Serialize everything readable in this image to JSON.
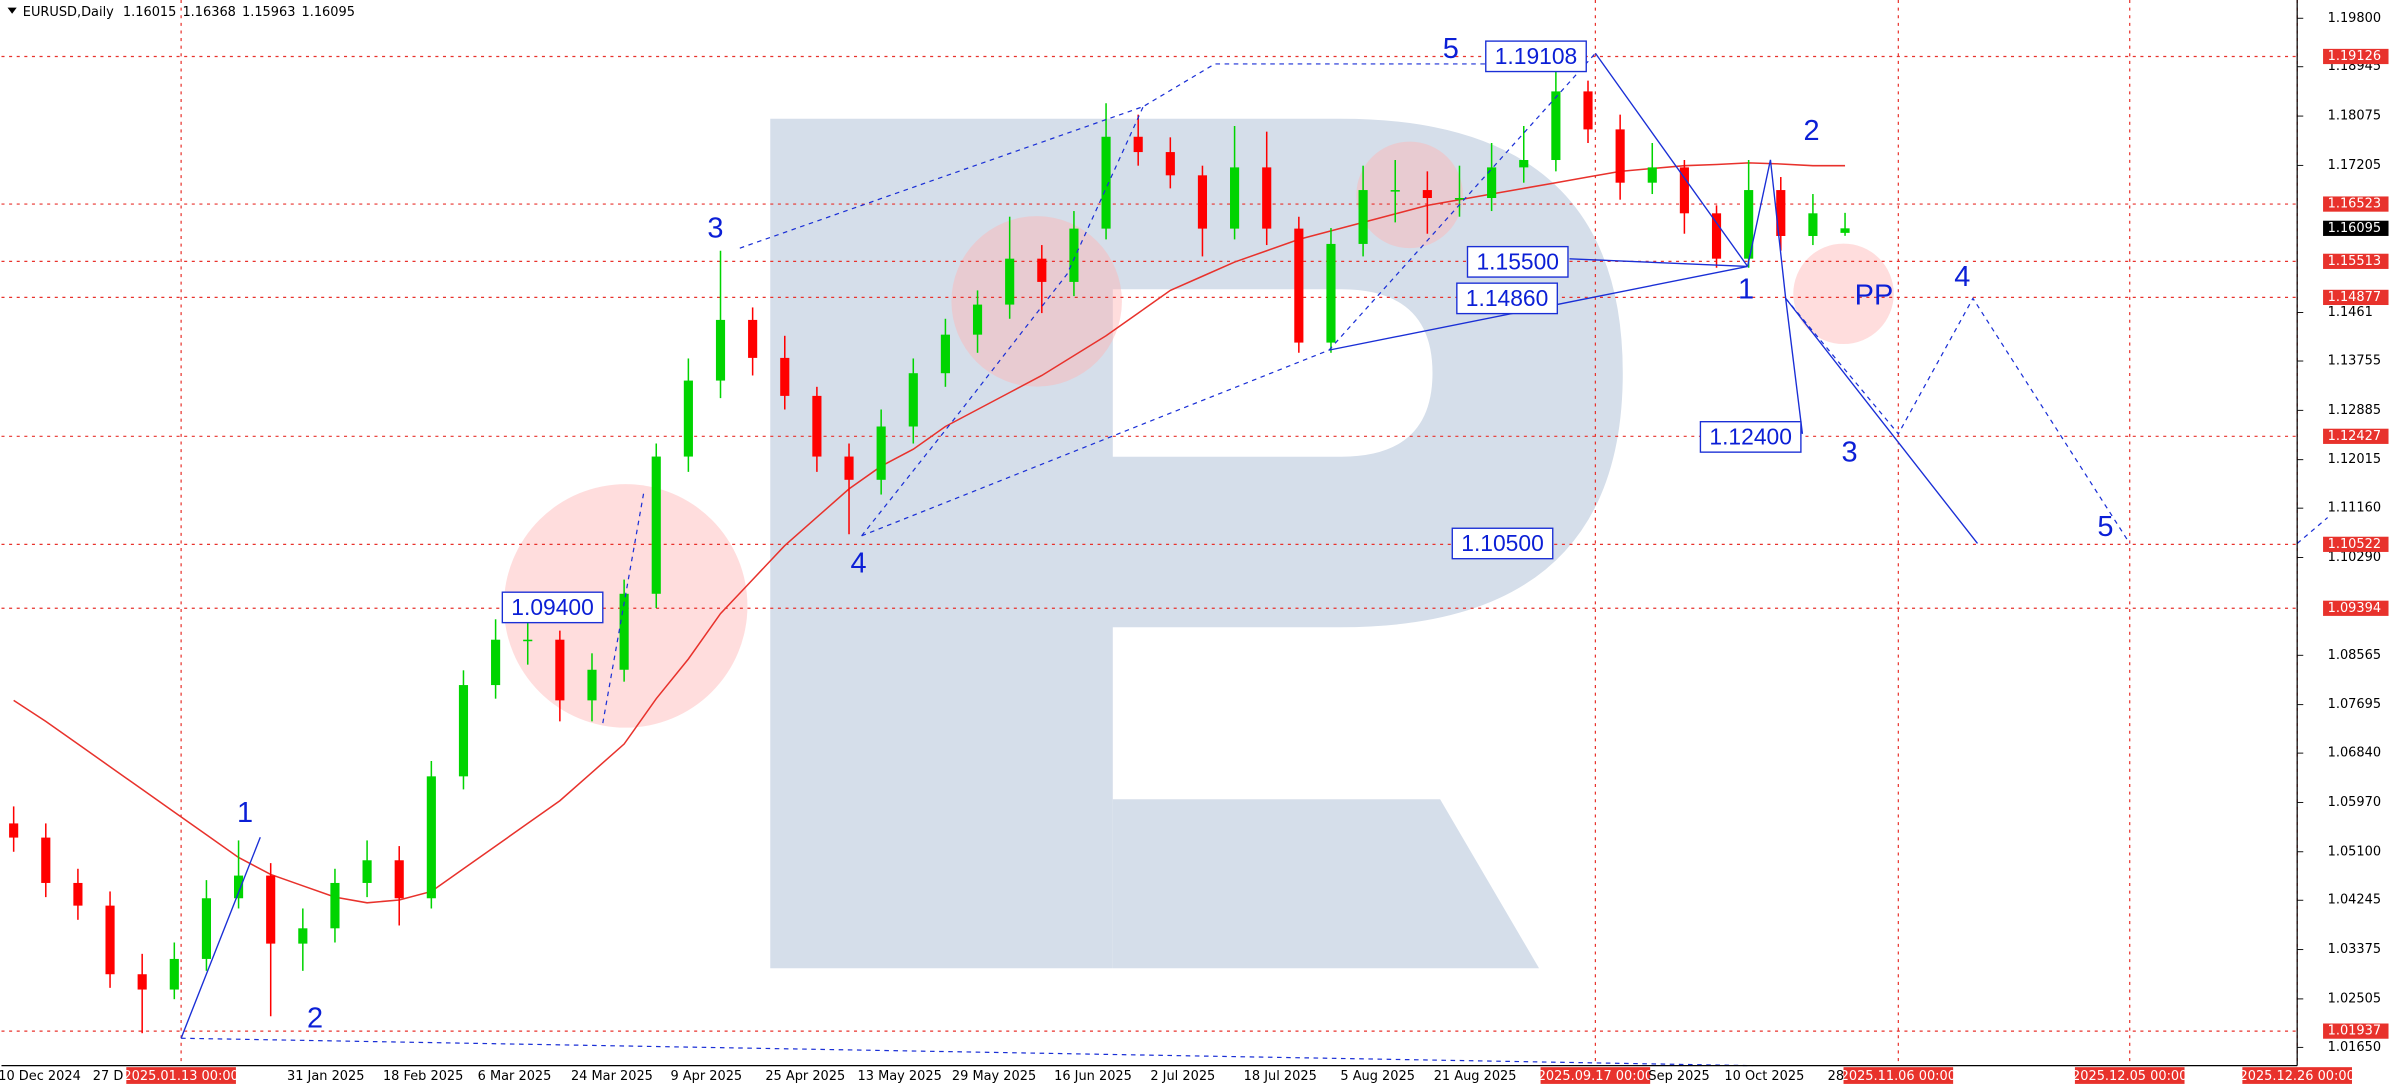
{
  "header": {
    "symbol": "EURUSD,Daily",
    "ohlc": [
      1.16015,
      1.16368,
      1.15963,
      1.16095
    ]
  },
  "chart_data": {
    "type": "candlestick",
    "ylim": [
      1.01328,
      1.20122
    ],
    "yticks": [
      {
        "value": 1.198,
        "label": "1.19800"
      },
      1.18945,
      1.18075,
      1.17205,
      1.1461,
      1.13755,
      1.12885,
      1.12015,
      {
        "value": 1.1116,
        "label": "1.11160"
      },
      {
        "value": 1.1029,
        "label": "1.10290"
      },
      1.08565,
      1.07695,
      {
        "value": 1.0684,
        "label": "1.06840"
      },
      {
        "value": 1.0597,
        "label": "1.05970"
      },
      {
        "value": 1.051,
        "label": "1.05100"
      },
      1.04245,
      1.03375,
      1.02505,
      {
        "value": 1.0165,
        "label": "1.01650"
      }
    ],
    "levels": [
      1.19126,
      1.16523,
      1.15513,
      1.14877,
      1.12427,
      1.10522,
      1.09394,
      1.01937
    ],
    "current_price": 1.16095,
    "candles": [
      [
        1.056,
        1.059,
        1.051,
        1.0535
      ],
      [
        1.0535,
        1.056,
        1.043,
        1.0455
      ],
      [
        1.0455,
        1.048,
        1.039,
        1.0415
      ],
      [
        1.0415,
        1.044,
        1.027,
        1.0294
      ],
      [
        1.0294,
        1.033,
        1.019,
        1.0267
      ],
      [
        1.0267,
        1.035,
        1.025,
        1.0321
      ],
      [
        1.0321,
        1.046,
        1.03,
        1.0428
      ],
      [
        1.0428,
        1.053,
        1.041,
        1.0468
      ],
      [
        1.0468,
        1.049,
        1.022,
        1.0348
      ],
      [
        1.0348,
        1.041,
        1.03,
        1.0375
      ],
      [
        1.0375,
        1.048,
        1.035,
        1.0455
      ],
      [
        1.0455,
        1.053,
        1.043,
        1.0495
      ],
      [
        1.0495,
        1.052,
        1.038,
        1.0428
      ],
      [
        1.0428,
        1.067,
        1.041,
        1.0643
      ],
      [
        1.0643,
        1.083,
        1.062,
        1.0804
      ],
      [
        1.0804,
        1.092,
        1.078,
        1.0884
      ],
      [
        1.0884,
        1.094,
        1.084,
        1.0884
      ],
      [
        1.0884,
        1.09,
        1.074,
        1.0777
      ],
      [
        1.0777,
        1.086,
        1.074,
        1.0831
      ],
      [
        1.0831,
        1.099,
        1.081,
        1.0965
      ],
      [
        1.0965,
        1.123,
        1.094,
        1.1207
      ],
      [
        1.1207,
        1.138,
        1.118,
        1.1341
      ],
      [
        1.1341,
        1.157,
        1.131,
        1.1448
      ],
      [
        1.1448,
        1.147,
        1.135,
        1.1381
      ],
      [
        1.1381,
        1.142,
        1.129,
        1.1314
      ],
      [
        1.1314,
        1.133,
        1.118,
        1.1207
      ],
      [
        1.1207,
        1.123,
        1.107,
        1.1166
      ],
      [
        1.1166,
        1.129,
        1.114,
        1.126
      ],
      [
        1.126,
        1.138,
        1.123,
        1.1354
      ],
      [
        1.1354,
        1.145,
        1.133,
        1.1422
      ],
      [
        1.1422,
        1.15,
        1.139,
        1.1475
      ],
      [
        1.1475,
        1.163,
        1.145,
        1.1556
      ],
      [
        1.1556,
        1.158,
        1.146,
        1.1515
      ],
      [
        1.1515,
        1.164,
        1.149,
        1.1609
      ],
      [
        1.1609,
        1.183,
        1.159,
        1.1771
      ],
      [
        1.1771,
        1.181,
        1.172,
        1.1744
      ],
      [
        1.1744,
        1.177,
        1.168,
        1.1703
      ],
      [
        1.1703,
        1.172,
        1.156,
        1.1609
      ],
      [
        1.1609,
        1.179,
        1.159,
        1.1717
      ],
      [
        1.1717,
        1.178,
        1.158,
        1.1609
      ],
      [
        1.1609,
        1.163,
        1.139,
        1.1408
      ],
      [
        1.1408,
        1.161,
        1.139,
        1.1582
      ],
      [
        1.1582,
        1.172,
        1.156,
        1.1677
      ],
      [
        1.1677,
        1.173,
        1.162,
        1.1677
      ],
      [
        1.1677,
        1.171,
        1.16,
        1.1663
      ],
      [
        1.1663,
        1.172,
        1.163,
        1.1663
      ],
      [
        1.1663,
        1.176,
        1.164,
        1.1717
      ],
      [
        1.1717,
        1.179,
        1.169,
        1.173
      ],
      [
        1.173,
        1.1918,
        1.171,
        1.1851
      ],
      [
        1.1851,
        1.187,
        1.176,
        1.1784
      ],
      [
        1.1784,
        1.181,
        1.166,
        1.169
      ],
      [
        1.169,
        1.176,
        1.167,
        1.1717
      ],
      [
        1.1717,
        1.173,
        1.16,
        1.1636
      ],
      [
        1.1636,
        1.165,
        1.154,
        1.1556
      ],
      [
        1.1556,
        1.173,
        1.154,
        1.1677
      ],
      [
        1.1677,
        1.17,
        1.157,
        1.1596
      ],
      [
        1.1596,
        1.167,
        1.158,
        1.1636
      ],
      [
        1.16015,
        1.16368,
        1.15963,
        1.16095
      ]
    ],
    "up_color": "#00d400",
    "down_color": "#ff0000",
    "moving_average": {
      "color": "#e8322c",
      "values": [
        1.0777,
        1.074,
        1.07,
        1.066,
        1.062,
        1.058,
        1.054,
        1.05,
        1.047,
        1.045,
        1.043,
        1.042,
        1.0425,
        1.044,
        1.048,
        1.052,
        1.056,
        1.06,
        1.065,
        1.07,
        1.078,
        1.085,
        1.093,
        1.099,
        1.105,
        1.11,
        1.115,
        1.119,
        1.122,
        1.126,
        1.129,
        1.132,
        1.135,
        1.1385,
        1.142,
        1.146,
        1.15,
        1.1525,
        1.155,
        1.157,
        1.159,
        1.1605,
        1.162,
        1.1635,
        1.165,
        1.166,
        1.167,
        1.168,
        1.169,
        1.17,
        1.171,
        1.1715,
        1.172,
        1.1722,
        1.1725,
        1.1723,
        1.172,
        1.172
      ]
    },
    "x_labels": [
      "10 Dec 2024",
      "27 D",
      "31 Jan 2025",
      "18 Feb 2025",
      "6 Mar 2025",
      "24 Mar 2025",
      "9 Apr 2025",
      "25 Apr 2025",
      "13 May 2025",
      "29 May 2025",
      "16 Jun 2025",
      "2 Jul 2025",
      "18 Jul 2025",
      "5 Aug 2025",
      "21 Aug 2025",
      "Sep 2025",
      "10 Oct 2025",
      "28"
    ],
    "date_markers": [
      "2025.01.13 00:00",
      "2025.09.17 00:00",
      "2025.11.06 00:00",
      "2025.12.05 00:00",
      "2025.12.26 00:00"
    ],
    "wave_labels": [
      "1",
      "2",
      "3",
      "4",
      "5",
      "1",
      "2",
      "3",
      "4",
      "5",
      "PP"
    ],
    "price_notes": [
      "1.19108",
      "1.15500",
      "1.14860",
      "1.12400",
      "1.10500",
      "1.09400"
    ]
  }
}
